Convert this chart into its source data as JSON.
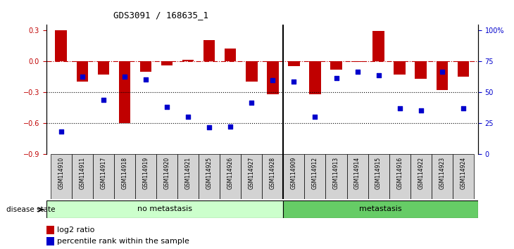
{
  "title": "GDS3091 / 168635_1",
  "samples": [
    "GSM114910",
    "GSM114911",
    "GSM114917",
    "GSM114918",
    "GSM114919",
    "GSM114920",
    "GSM114921",
    "GSM114925",
    "GSM114926",
    "GSM114927",
    "GSM114928",
    "GSM114909",
    "GSM114912",
    "GSM114913",
    "GSM114914",
    "GSM114915",
    "GSM114916",
    "GSM114922",
    "GSM114923",
    "GSM114924"
  ],
  "log2_ratio": [
    0.3,
    -0.2,
    -0.13,
    -0.6,
    -0.1,
    -0.04,
    0.01,
    0.2,
    0.12,
    -0.2,
    -0.32,
    -0.05,
    -0.32,
    -0.08,
    -0.01,
    0.29,
    -0.13,
    -0.17,
    -0.28,
    -0.15
  ],
  "pct_rank": [
    0.185,
    0.625,
    0.44,
    0.625,
    0.6,
    0.38,
    0.3,
    0.215,
    0.225,
    0.415,
    0.595,
    0.585,
    0.305,
    0.615,
    0.665,
    0.635,
    0.37,
    0.355,
    0.665,
    0.37
  ],
  "no_meta_count": 11,
  "bar_color": "#c00000",
  "dot_color": "#0000cc",
  "bg_color": "#ffffff",
  "yticks_left": [
    0.3,
    0.0,
    -0.3,
    -0.6,
    -0.9
  ],
  "yticks_right_vals": [
    1.0,
    0.75,
    0.5,
    0.25,
    0.0
  ],
  "yticks_right_labels": [
    "100%",
    "75",
    "50",
    "25",
    "0"
  ],
  "no_meta_label": "no metastasis",
  "meta_label": "metastasis",
  "disease_state_label": "disease state",
  "legend_bar_label": "log2 ratio",
  "legend_dot_label": "percentile rank within the sample",
  "no_meta_color": "#ccffcc",
  "meta_color": "#66cc66",
  "ymin": -0.9,
  "ymax": 0.35
}
